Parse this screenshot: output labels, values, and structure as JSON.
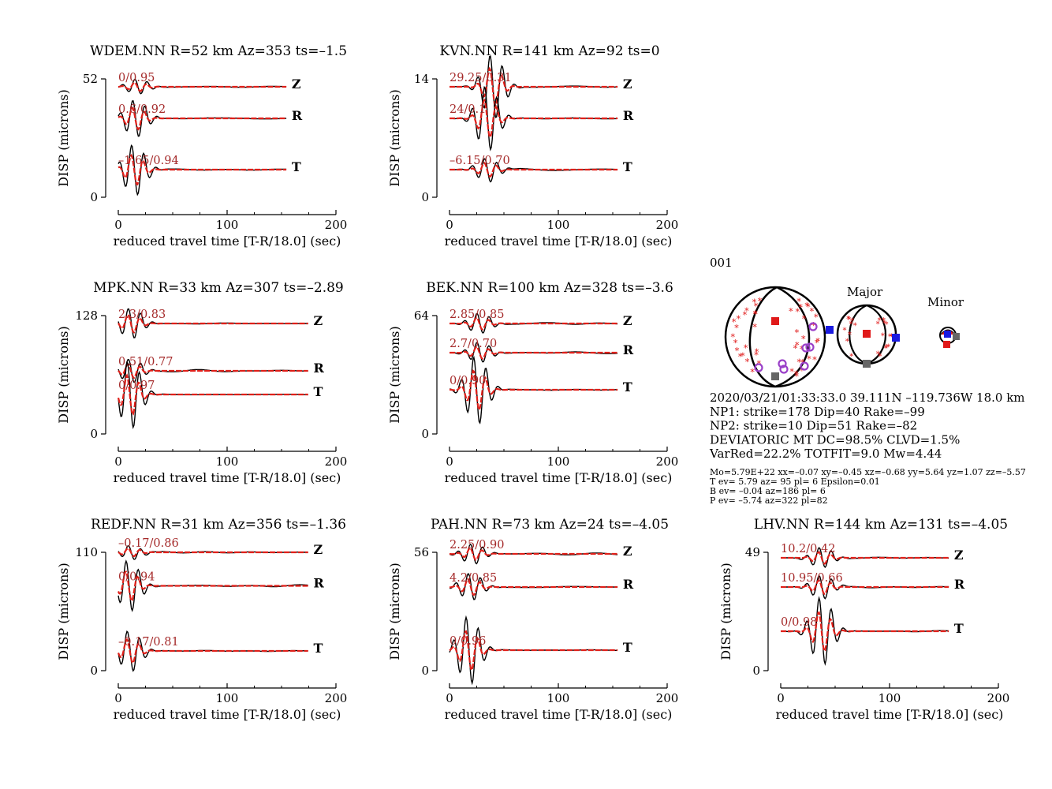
{
  "colors": {
    "observed": "#000000",
    "synthetic": "#e0201a",
    "fit_label": "#a52a2a",
    "axis": "#000000",
    "t_axis": "#e01a1a",
    "p_axis": "#1a1ae0",
    "b_axis": "#666666",
    "first_motion": "#9a40c8"
  },
  "panels": [
    {
      "title": "WDEM.NN R=52 km Az=353 ts=–1.5",
      "ymax_label": "52",
      "ymin_label": "0",
      "ylabel": "DISP (microns)",
      "xlabel": "reduced travel time [T-R/18.0] (sec)",
      "xticks": [
        "0",
        "100",
        "200"
      ],
      "traces": [
        {
          "comp": "Z",
          "fit": "0/0.95",
          "duration": 155,
          "amp": 0.22,
          "arrival": 18
        },
        {
          "comp": "R",
          "fit": "0.6/0.92",
          "duration": 155,
          "amp": 0.55,
          "arrival": 16
        },
        {
          "comp": "T",
          "fit": "–1.65/0.94",
          "duration": 155,
          "amp": 0.75,
          "arrival": 15
        }
      ]
    },
    {
      "title": "KVN.NN R=141 km Az=92 ts=0",
      "ymax_label": "14",
      "ymin_label": "0",
      "ylabel": "DISP (microns)",
      "xlabel": "reduced travel time [T-R/18.0] (sec)",
      "xticks": [
        "0",
        "100",
        "200"
      ],
      "traces": [
        {
          "comp": "Z",
          "fit": "29.25/0.31",
          "duration": 155,
          "amp": 0.95,
          "arrival": 40
        },
        {
          "comp": "R",
          "fit": "24/0.1",
          "duration": 155,
          "amp": 0.95,
          "arrival": 35
        },
        {
          "comp": "T",
          "fit": "–6.15/0.70",
          "duration": 155,
          "amp": 0.35,
          "arrival": 35
        }
      ]
    },
    {
      "title": "MPK.NN R=33 km Az=307 ts=–2.89",
      "ymax_label": "128",
      "ymin_label": "0",
      "ylabel": "DISP (microns)",
      "xlabel": "reduced travel time [T-R/18.0] (sec)",
      "xticks": [
        "0",
        "100",
        "200"
      ],
      "traces": [
        {
          "comp": "Z",
          "fit": "2.3/0.83",
          "duration": 175,
          "amp": 0.45,
          "arrival": 12
        },
        {
          "comp": "R",
          "fit": "0.51/0.77",
          "duration": 175,
          "amp": 0.35,
          "arrival": 12
        },
        {
          "comp": "T",
          "fit": "0/0.97",
          "duration": 175,
          "amp": 1.0,
          "arrival": 11
        }
      ]
    },
    {
      "title": "BEK.NN R=100 km Az=328 ts=–3.6",
      "ymax_label": "64",
      "ymin_label": "0",
      "ylabel": "DISP (microns)",
      "xlabel": "reduced travel time [T-R/18.0] (sec)",
      "xticks": [
        "0",
        "100",
        "200"
      ],
      "traces": [
        {
          "comp": "Z",
          "fit": "2.85/0.85",
          "duration": 155,
          "amp": 0.3,
          "arrival": 28
        },
        {
          "comp": "R",
          "fit": "2.7/0.70",
          "duration": 155,
          "amp": 0.3,
          "arrival": 28
        },
        {
          "comp": "T",
          "fit": "0/0.90",
          "duration": 155,
          "amp": 1.0,
          "arrival": 25
        }
      ]
    },
    {
      "title": "REDF.NN R=31 km Az=356 ts=–1.36",
      "ymax_label": "110",
      "ymin_label": "0",
      "ylabel": "DISP (microns)",
      "xlabel": "reduced travel time [T-R/18.0] (sec)",
      "xticks": [
        "0",
        "100",
        "200"
      ],
      "traces": [
        {
          "comp": "Z",
          "fit": "–0.17/0.86",
          "duration": 175,
          "amp": 0.2,
          "arrival": 12
        },
        {
          "comp": "R",
          "fit": "0/0.94",
          "duration": 175,
          "amp": 0.75,
          "arrival": 10
        },
        {
          "comp": "T",
          "fit": "–0.17/0.81",
          "duration": 175,
          "amp": 0.6,
          "arrival": 11
        }
      ]
    },
    {
      "title": "PAH.NN R=73 km Az=24 ts=–4.05",
      "ymax_label": "56",
      "ymin_label": "0",
      "ylabel": "DISP (microns)",
      "xlabel": "reduced travel time [T-R/18.0] (sec)",
      "xticks": [
        "0",
        "100",
        "200"
      ],
      "traces": [
        {
          "comp": "Z",
          "fit": "2.25/0.90",
          "duration": 155,
          "amp": 0.3,
          "arrival": 22
        },
        {
          "comp": "R",
          "fit": "4.2/0.85",
          "duration": 155,
          "amp": 0.4,
          "arrival": 20
        },
        {
          "comp": "T",
          "fit": "0/0.96",
          "duration": 155,
          "amp": 1.0,
          "arrival": 18
        }
      ]
    },
    {
      "title": "LHV.NN R=144 km Az=131 ts=–4.05",
      "ymax_label": "49",
      "ymin_label": "0",
      "ylabel": "DISP (microns)",
      "xlabel": "reduced travel time [T-R/18.0] (sec)",
      "xticks": [
        "0",
        "100",
        "200"
      ],
      "traces": [
        {
          "comp": "Z",
          "fit": "10.2/0.42",
          "duration": 155,
          "amp": 0.3,
          "arrival": 38
        },
        {
          "comp": "R",
          "fit": "10.95/0.66",
          "duration": 155,
          "amp": 0.35,
          "arrival": 38
        },
        {
          "comp": "T",
          "fit": "0/0.98",
          "duration": 155,
          "amp": 1.0,
          "arrival": 38
        }
      ]
    }
  ],
  "mechanism": {
    "run_id": "001",
    "major_label": "Major",
    "minor_label": "Minor",
    "info_lines": [
      "2020/03/21/01:33:33.0 39.111N –119.736W 18.0 km",
      "NP1: strike=178 Dip=40 Rake=–99",
      "NP2: strike=10 Dip=51 Rake=–82",
      "DEVIATORIC MT DC=98.5% CLVD=1.5%",
      "VarRed=22.2% TOTFIT=9.0 Mw=4.44"
    ],
    "detail_lines": [
      "Mo=5.79E+22 xx=–0.07 xy=–0.45 xz=–0.68 yy=5.64 yz=1.07 zz=–5.57",
      "T ev=  5.79 az= 95 pl= 6 Epsilon=0.01",
      "B ev= –0.04 az=186 pl= 6",
      "P ev= –5.74 az=322 pl=82"
    ]
  },
  "chart_data": {
    "type": "line",
    "description_units": "displacement in microns vs reduced travel time in seconds",
    "x_range": [
      0,
      200
    ],
    "stations": [
      {
        "station": "WDEM.NN",
        "R_km": 52,
        "Az": 353,
        "ts": -1.5,
        "ymax": 52,
        "fits": {
          "Z": "0/0.95",
          "R": "0.6/0.92",
          "T": "–1.65/0.94"
        }
      },
      {
        "station": "KVN.NN",
        "R_km": 141,
        "Az": 92,
        "ts": 0,
        "ymax": 14,
        "fits": {
          "Z": "29.25/0.31",
          "R": "24/0.1",
          "T": "–6.15/0.70"
        }
      },
      {
        "station": "MPK.NN",
        "R_km": 33,
        "Az": 307,
        "ts": -2.89,
        "ymax": 128,
        "fits": {
          "Z": "2.3/0.83",
          "R": "0.51/0.77",
          "T": "0/0.97"
        }
      },
      {
        "station": "BEK.NN",
        "R_km": 100,
        "Az": 328,
        "ts": -3.6,
        "ymax": 64,
        "fits": {
          "Z": "2.85/0.85",
          "R": "2.7/0.70",
          "T": "0/0.90"
        }
      },
      {
        "station": "REDF.NN",
        "R_km": 31,
        "Az": 356,
        "ts": -1.36,
        "ymax": 110,
        "fits": {
          "Z": "–0.17/0.86",
          "R": "0/0.94",
          "T": "–0.17/0.81"
        }
      },
      {
        "station": "PAH.NN",
        "R_km": 73,
        "Az": 24,
        "ts": -4.05,
        "ymax": 56,
        "fits": {
          "Z": "2.25/0.90",
          "R": "4.2/0.85",
          "T": "0/0.96"
        }
      },
      {
        "station": "LHV.NN",
        "R_km": 144,
        "Az": 131,
        "ts": -4.05,
        "ymax": 49,
        "fits": {
          "Z": "10.2/0.42",
          "R": "10.95/0.66",
          "T": "0/0.98"
        }
      }
    ]
  }
}
